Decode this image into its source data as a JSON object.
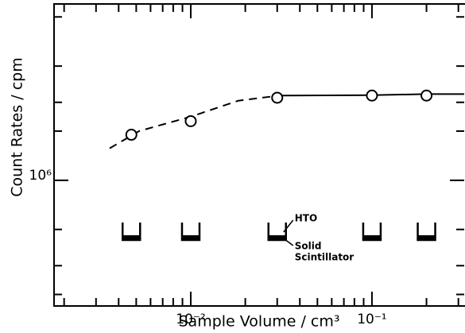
{
  "chart_data": {
    "type": "scatter",
    "x_label": "Sample Volume / cm³",
    "y_label": "Count Rates / cpm",
    "x": [
      0.0047,
      0.01,
      0.03,
      0.1,
      0.2
    ],
    "values": [
      1900000,
      2300000,
      3200000,
      3300000,
      3300000
    ],
    "color": "#000000",
    "x_log": true,
    "y_log": true,
    "xlim": [
      0.00176,
      0.323
    ],
    "ylim": [
      170000,
      12000000
    ],
    "xticks": [
      {
        "value": 0.01,
        "label": "10⁻²"
      },
      {
        "value": 0.1,
        "label": "10⁻¹"
      }
    ],
    "xminor_ticks": [
      0.002,
      0.003,
      0.004,
      0.005,
      0.006,
      0.007,
      0.008,
      0.009,
      0.02,
      0.03,
      0.04,
      0.05,
      0.06,
      0.07,
      0.08,
      0.09,
      0.2,
      0.3
    ],
    "yticks": [
      {
        "value": 1000000,
        "label": "10⁶"
      }
    ],
    "yminor_ticks": [
      200000,
      300000,
      500000,
      2000000,
      3000000,
      5000000,
      10000000
    ],
    "dashed_curve": {
      "x": [
        0.00357,
        0.00519,
        0.01,
        0.0183,
        0.031
      ],
      "y": [
        1570000,
        2000000,
        2450000,
        3070000,
        3300000
      ]
    },
    "solid_line": {
      "x": [
        0.031,
        0.1,
        0.2,
        0.323
      ],
      "y": [
        3300000,
        3320000,
        3370000,
        3370000
      ]
    },
    "annotations": {
      "hto": "HTO",
      "solid": "Solid",
      "scintillator": "Scintillator"
    }
  }
}
